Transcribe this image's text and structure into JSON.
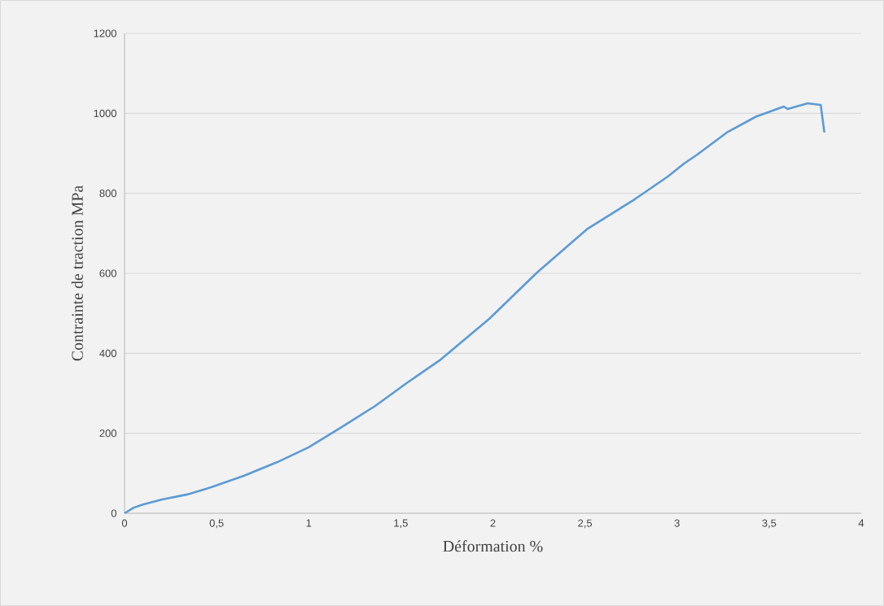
{
  "chart_data": {
    "type": "line",
    "xlabel": "Déformation %",
    "ylabel": "Contrainte de traction MPa",
    "xlim": [
      0,
      4
    ],
    "ylim": [
      0,
      1200
    ],
    "xticks": [
      0,
      {
        "value": 0.5,
        "label": "0,5"
      },
      1,
      {
        "value": 1.5,
        "label": "1,5"
      },
      2,
      {
        "value": 2.5,
        "label": "2,5"
      },
      3,
      {
        "value": 3.5,
        "label": "3,5"
      },
      4
    ],
    "yticks": [
      0,
      200,
      400,
      600,
      800,
      1000,
      1200
    ],
    "grid": "y",
    "legend": false,
    "marker": "none",
    "line_style": "solid",
    "series": [
      {
        "color": "#5b9bd5",
        "x": [
          0,
          0.05,
          0.1,
          0.2,
          0.34,
          0.47,
          0.65,
          0.83,
          1.0,
          1.18,
          1.36,
          1.53,
          1.71,
          1.98,
          2.24,
          2.51,
          2.77,
          2.95,
          3.04,
          3.11,
          3.27,
          3.43,
          3.58,
          3.6,
          3.71,
          3.78,
          3.8
        ],
        "values": [
          0,
          14,
          22,
          34,
          47,
          65,
          94,
          128,
          165,
          216,
          268,
          325,
          382,
          486,
          602,
          710,
          785,
          842,
          875,
          897,
          952,
          992,
          1017,
          1011,
          1025,
          1021,
          952
        ]
      }
    ]
  }
}
